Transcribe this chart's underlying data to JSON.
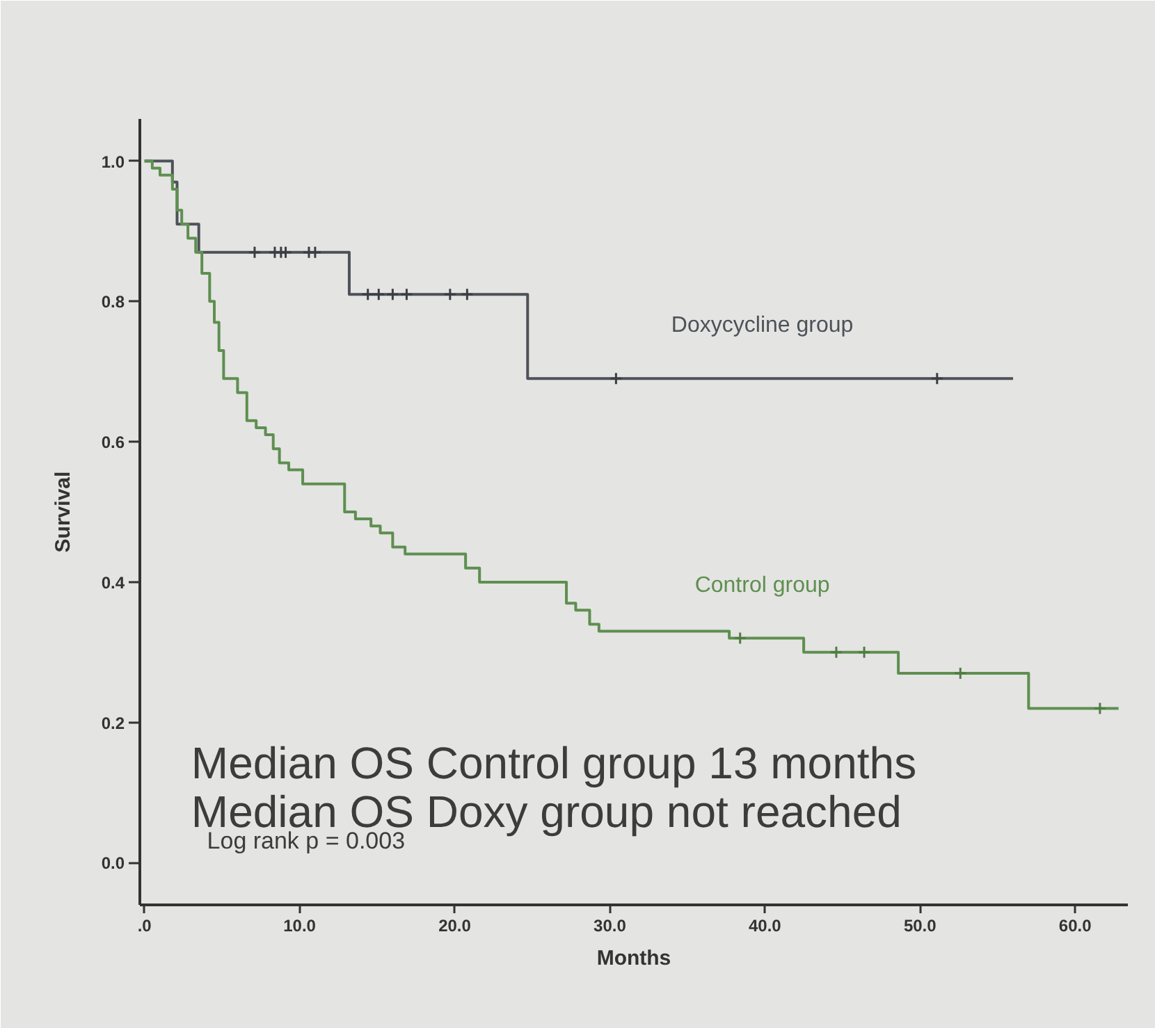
{
  "chart_data": {
    "type": "step",
    "xlabel": "Months",
    "ylabel": "Survival",
    "grid": false,
    "xlim": [
      -0.3,
      63.4
    ],
    "ylim": [
      -0.06,
      1.06
    ],
    "xticks": [
      {
        "value": 0,
        "label": ".0"
      },
      {
        "value": 10,
        "label": "10.0"
      },
      {
        "value": 20,
        "label": "20.0"
      },
      {
        "value": 30,
        "label": "30.0"
      },
      {
        "value": 40,
        "label": "40.0"
      },
      {
        "value": 50,
        "label": "50.0"
      },
      {
        "value": 60,
        "label": "60.0"
      }
    ],
    "yticks": [
      {
        "value": 0,
        "label": "0.0"
      },
      0.2,
      0.4,
      0.6,
      0.8,
      {
        "value": 1,
        "label": "1.0"
      }
    ],
    "series": [
      {
        "name": "Doxycycline group",
        "color": "#4d5258",
        "x": [
          0,
          1.8,
          2.1,
          3.5,
          13.2,
          24.7,
          56.0
        ],
        "values": [
          1.0,
          0.97,
          0.91,
          0.87,
          0.81,
          0.69,
          0.69
        ]
      },
      {
        "name": "Control group",
        "color": "#5e8f50",
        "x": [
          0,
          0.5,
          1.0,
          1.8,
          2.1,
          2.4,
          2.8,
          3.3,
          3.7,
          4.2,
          4.5,
          4.8,
          5.1,
          6.0,
          6.6,
          7.2,
          7.8,
          8.3,
          8.7,
          9.3,
          10.2,
          12.9,
          13.6,
          14.6,
          15.2,
          16.0,
          16.8,
          20.7,
          21.6,
          27.2,
          27.8,
          28.7,
          29.3,
          37.7,
          42.5,
          48.6,
          57.0,
          62.8
        ],
        "values": [
          1.0,
          0.99,
          0.98,
          0.96,
          0.93,
          0.91,
          0.89,
          0.87,
          0.84,
          0.8,
          0.77,
          0.73,
          0.69,
          0.67,
          0.63,
          0.62,
          0.61,
          0.59,
          0.57,
          0.56,
          0.54,
          0.5,
          0.49,
          0.48,
          0.47,
          0.45,
          0.44,
          0.42,
          0.4,
          0.37,
          0.36,
          0.34,
          0.33,
          0.32,
          0.3,
          0.27,
          0.22,
          0.22
        ]
      },
      {
        "type": "scatter",
        "marker": "cross",
        "color": "#3a3e44",
        "x": [
          7.1,
          8.4,
          8.8,
          9.1,
          10.6,
          11.0,
          14.4,
          15.1,
          16.0,
          16.9,
          19.7,
          20.8,
          30.4,
          51.1
        ],
        "values": [
          0.87,
          0.87,
          0.87,
          0.87,
          0.87,
          0.87,
          0.81,
          0.81,
          0.81,
          0.81,
          0.81,
          0.81,
          0.69,
          0.69
        ]
      },
      {
        "type": "scatter",
        "marker": "cross",
        "color": "#4f7d43",
        "x": [
          38.4,
          44.6,
          46.4,
          52.6,
          61.6
        ],
        "values": [
          0.32,
          0.3,
          0.3,
          0.27,
          0.22
        ]
      }
    ],
    "annotations": [
      "Median OS Control group 13 months",
      "Median OS Doxy group  not reached",
      "Log rank p = 0.003"
    ]
  }
}
